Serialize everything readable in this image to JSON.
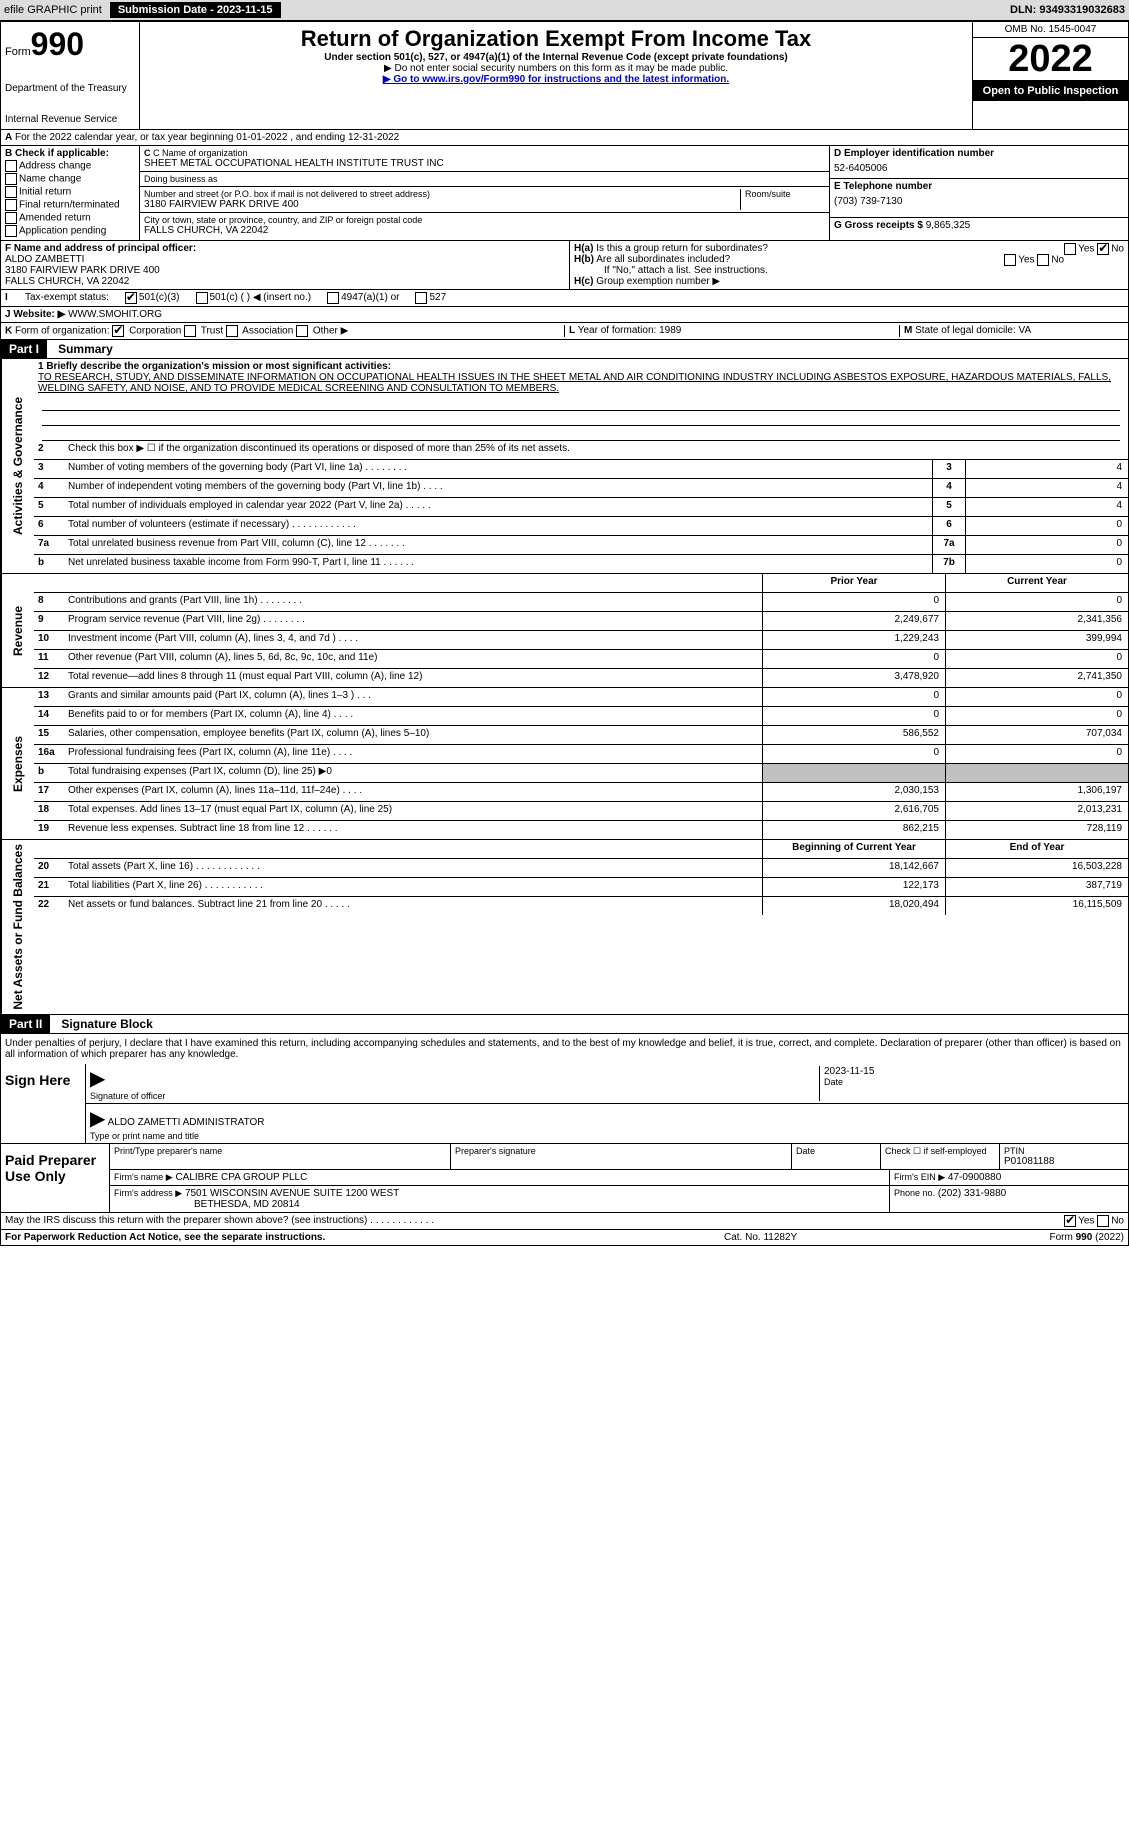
{
  "topbar": {
    "efile": "efile GRAPHIC print",
    "submission": "Submission Date - 2023-11-15",
    "dln": "DLN: 93493319032683"
  },
  "header": {
    "form_label": "Form",
    "form_number": "990",
    "dept": "Department of the Treasury",
    "service": "Internal Revenue Service",
    "title": "Return of Organization Exempt From Income Tax",
    "sub": "Under section 501(c), 527, or 4947(a)(1) of the Internal Revenue Code (except private foundations)",
    "note": "▶ Do not enter social security numbers on this form as it may be made public.",
    "link_pre": "▶ Go to ",
    "link": "www.irs.gov/Form990",
    "link_post": " for instructions and the latest information.",
    "omb": "OMB No. 1545-0047",
    "year": "2022",
    "inspection": "Open to Public Inspection"
  },
  "sectionA": "For the 2022 calendar year, or tax year beginning 01-01-2022    , and ending 12-31-2022",
  "blockB": {
    "title": "B Check if applicable:",
    "items": [
      "Address change",
      "Name change",
      "Initial return",
      "Final return/terminated",
      "Amended return",
      "Application pending"
    ]
  },
  "blockC": {
    "name_label": "C Name of organization",
    "name": "SHEET METAL OCCUPATIONAL HEALTH INSTITUTE TRUST INC",
    "dba_label": "Doing business as",
    "dba": "",
    "street_label": "Number and street (or P.O. box if mail is not delivered to street address)",
    "room_label": "Room/suite",
    "street": "3180 FAIRVIEW PARK DRIVE 400",
    "city_label": "City or town, state or province, country, and ZIP or foreign postal code",
    "city": "FALLS CHURCH, VA  22042"
  },
  "blockD": {
    "ein_label": "D Employer identification number",
    "ein": "52-6405006",
    "tel_label": "E Telephone number",
    "tel": "(703) 739-7130",
    "gross_label": "G Gross receipts $",
    "gross": "9,865,325"
  },
  "blockF": {
    "label": "F  Name and address of principal officer:",
    "name": "ALDO ZAMBETTI",
    "street": "3180 FAIRVIEW PARK DRIVE 400",
    "city": "FALLS CHURCH, VA  22042"
  },
  "blockH": {
    "a_label": "H(a)",
    "a_text": "Is this a group return for subordinates?",
    "b_label": "H(b)",
    "b_text": "Are all subordinates included?",
    "b_note": "If \"No,\" attach a list. See instructions.",
    "c_label": "H(c)",
    "c_text": "Group exemption number ▶"
  },
  "blockI": {
    "label": "I",
    "text": "Tax-exempt status:",
    "opts": [
      "501(c)(3)",
      "501(c) (    ) ◀ (insert no.)",
      "4947(a)(1) or",
      "527"
    ]
  },
  "blockJ": {
    "label": "J",
    "text": "Website: ▶",
    "val": "WWW.SMOHIT.ORG"
  },
  "blockK": {
    "label": "K",
    "text": "Form of organization:",
    "opts": [
      "Corporation",
      "Trust",
      "Association",
      "Other ▶"
    ]
  },
  "blockL": {
    "label": "L",
    "text": "Year of formation:",
    "val": "1989"
  },
  "blockM": {
    "label": "M",
    "text": "State of legal domicile:",
    "val": "VA"
  },
  "part1": {
    "header": "Part I",
    "title": "Summary",
    "mission_label": "1  Briefly describe the organization's mission or most significant activities:",
    "mission": "TO RESEARCH, STUDY, AND DISSEMINATE INFORMATION ON OCCUPATIONAL HEALTH ISSUES IN THE SHEET METAL AND AIR CONDITIONING INDUSTRY INCLUDING ASBESTOS EXPOSURE, HAZARDOUS MATERIALS, FALLS, WELDING SAFETY, AND NOISE, AND TO PROVIDE MEDICAL SCREENING AND CONSULTATION TO MEMBERS."
  },
  "sideLabels": {
    "gov": "Activities & Governance",
    "rev": "Revenue",
    "exp": "Expenses",
    "net": "Net Assets or Fund Balances"
  },
  "govLines": {
    "l2": "Check this box ▶ ☐ if the organization discontinued its operations or disposed of more than 25% of its net assets.",
    "l3": "Number of voting members of the governing body (Part VI, line 1a)  .    .    .    .    .    .    .    .",
    "l4": "Number of independent voting members of the governing body (Part VI, line 1b)  .    .    .    .",
    "l5": "Total number of individuals employed in calendar year 2022 (Part V, line 2a)  .    .    .    .    .",
    "l6": "Total number of volunteers (estimate if necessary)  .    .    .    .    .    .    .    .    .    .    .    .",
    "l7a": "Total unrelated business revenue from Part VIII, column (C), line 12  .    .    .    .    .    .    .",
    "l7b": "Net unrelated business taxable income from Form 990-T, Part I, line 11  .    .    .    .    .    .",
    "v3": "4",
    "v4": "4",
    "v5": "4",
    "v6": "0",
    "v7a": "0",
    "v7b": "0"
  },
  "colHeaders": {
    "prior": "Prior Year",
    "current": "Current Year"
  },
  "revLines": [
    {
      "n": "8",
      "t": "Contributions and grants (Part VIII, line 1h)  .    .    .    .    .    .    .    .",
      "p": "0",
      "c": "0"
    },
    {
      "n": "9",
      "t": "Program service revenue (Part VIII, line 2g)  .    .    .    .    .    .    .    .",
      "p": "2,249,677",
      "c": "2,341,356"
    },
    {
      "n": "10",
      "t": "Investment income (Part VIII, column (A), lines 3, 4, and 7d )  .    .    .    .",
      "p": "1,229,243",
      "c": "399,994"
    },
    {
      "n": "11",
      "t": "Other revenue (Part VIII, column (A), lines 5, 6d, 8c, 9c, 10c, and 11e)",
      "p": "0",
      "c": "0"
    },
    {
      "n": "12",
      "t": "Total revenue—add lines 8 through 11 (must equal Part VIII, column (A), line 12)",
      "p": "3,478,920",
      "c": "2,741,350"
    }
  ],
  "expLines": [
    {
      "n": "13",
      "t": "Grants and similar amounts paid (Part IX, column (A), lines 1–3 )  .    .    .",
      "p": "0",
      "c": "0"
    },
    {
      "n": "14",
      "t": "Benefits paid to or for members (Part IX, column (A), line 4)  .    .    .    .",
      "p": "0",
      "c": "0"
    },
    {
      "n": "15",
      "t": "Salaries, other compensation, employee benefits (Part IX, column (A), lines 5–10)",
      "p": "586,552",
      "c": "707,034"
    },
    {
      "n": "16a",
      "t": "Professional fundraising fees (Part IX, column (A), line 11e)  .    .    .    .",
      "p": "0",
      "c": "0"
    },
    {
      "n": "b",
      "t": "Total fundraising expenses (Part IX, column (D), line 25) ▶0",
      "shaded": true
    },
    {
      "n": "17",
      "t": "Other expenses (Part IX, column (A), lines 11a–11d, 11f–24e)  .    .    .    .",
      "p": "2,030,153",
      "c": "1,306,197"
    },
    {
      "n": "18",
      "t": "Total expenses. Add lines 13–17 (must equal Part IX, column (A), line 25)",
      "p": "2,616,705",
      "c": "2,013,231"
    },
    {
      "n": "19",
      "t": "Revenue less expenses. Subtract line 18 from line 12  .    .    .    .    .    .",
      "p": "862,215",
      "c": "728,119"
    }
  ],
  "netHeaders": {
    "begin": "Beginning of Current Year",
    "end": "End of Year"
  },
  "netLines": [
    {
      "n": "20",
      "t": "Total assets (Part X, line 16)  .    .    .    .    .    .    .    .    .    .    .    .",
      "p": "18,142,667",
      "c": "16,503,228"
    },
    {
      "n": "21",
      "t": "Total liabilities (Part X, line 26)  .    .    .    .    .    .    .    .    .    .    .",
      "p": "122,173",
      "c": "387,719"
    },
    {
      "n": "22",
      "t": "Net assets or fund balances. Subtract line 21 from line 20  .    .    .    .    .",
      "p": "18,020,494",
      "c": "16,115,509"
    }
  ],
  "part2": {
    "header": "Part II",
    "title": "Signature Block",
    "intro": "Under penalties of perjury, I declare that I have examined this return, including accompanying schedules and statements, and to the best of my knowledge and belief, it is true, correct, and complete. Declaration of preparer (other than officer) is based on all information of which preparer has any knowledge."
  },
  "sign": {
    "here": "Sign Here",
    "sig_label": "Signature of officer",
    "date_label": "Date",
    "date": "2023-11-15",
    "name": "ALDO ZAMETTI  ADMINISTRATOR",
    "name_label": "Type or print name and title"
  },
  "paid": {
    "label": "Paid Preparer Use Only",
    "h1": "Print/Type preparer's name",
    "h2": "Preparer's signature",
    "h3": "Date",
    "h4": "Check ☐ if self-employed",
    "h5_label": "PTIN",
    "h5": "P01081188",
    "firm_name_label": "Firm's name    ▶",
    "firm_name": "CALIBRE CPA GROUP PLLC",
    "firm_ein_label": "Firm's EIN ▶",
    "firm_ein": "47-0900880",
    "firm_addr_label": "Firm's address ▶",
    "firm_addr": "7501 WISCONSIN AVENUE SUITE 1200 WEST",
    "firm_city": "BETHESDA, MD  20814",
    "phone_label": "Phone no.",
    "phone": "(202) 331-9880"
  },
  "discuss": "May the IRS discuss this return with the preparer shown above? (see instructions)  .    .    .    .    .    .    .    .    .    .    .    .",
  "footer": {
    "left": "For Paperwork Reduction Act Notice, see the separate instructions.",
    "mid": "Cat. No. 11282Y",
    "right_pre": "Form ",
    "right_form": "990",
    "right_post": " (2022)"
  }
}
